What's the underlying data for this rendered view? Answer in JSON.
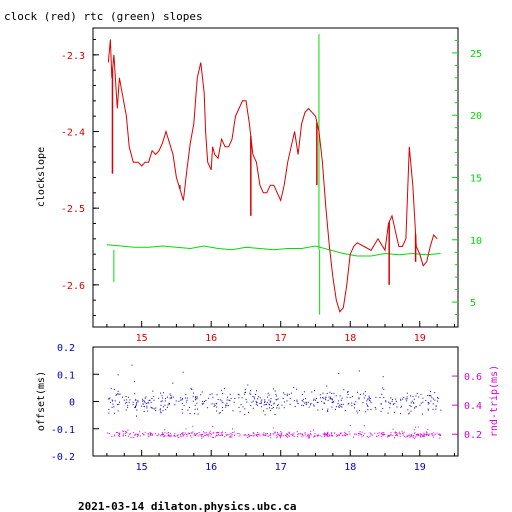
{
  "chart_data": [
    {
      "type": "line",
      "title": "clock (red) rtc (green) slopes",
      "xlabel": "",
      "ylabel": "clockslope",
      "xlim": [
        14.3,
        19.55
      ],
      "ylim": [
        -2.655,
        -2.265
      ],
      "y2lim": [
        3.0,
        27.0
      ],
      "x_ticks": [
        "15",
        "16",
        "17",
        "18",
        "19"
      ],
      "y_ticks": [
        "-2.3",
        "-2.4",
        "-2.5",
        "-2.6"
      ],
      "y2_ticks": [
        "5",
        "10",
        "15",
        "20",
        "25"
      ],
      "series": [
        {
          "name": "clock",
          "color": "#dd0000",
          "axis": "left",
          "x": [
            14.52,
            14.55,
            14.57,
            14.6,
            14.65,
            14.68,
            14.72,
            14.78,
            14.82,
            14.88,
            14.95,
            15.0,
            15.05,
            15.1,
            15.15,
            15.2,
            15.25,
            15.3,
            15.35,
            15.45,
            15.5,
            15.6,
            15.65,
            15.7,
            15.75,
            15.8,
            15.85,
            15.9,
            15.92,
            15.95,
            16.0,
            16.02,
            16.05,
            16.1,
            16.15,
            16.2,
            16.25,
            16.3,
            16.35,
            16.4,
            16.45,
            16.5,
            16.55,
            16.6,
            16.65,
            16.7,
            16.75,
            16.8,
            16.85,
            16.9,
            16.95,
            17.0,
            17.05,
            17.1,
            17.15,
            17.2,
            17.25,
            17.3,
            17.35,
            17.4,
            17.45,
            17.5,
            17.55,
            17.6,
            17.65,
            17.7,
            17.75,
            17.8,
            17.85,
            17.9,
            17.95,
            18.0,
            18.05,
            18.1,
            18.2,
            18.3,
            18.4,
            18.5,
            18.55,
            18.6,
            18.65,
            18.7,
            18.75,
            18.8,
            18.85,
            18.9,
            18.95,
            19.0,
            19.05,
            19.1,
            19.15,
            19.2,
            19.25
          ],
          "values": [
            -2.31,
            -2.28,
            -2.33,
            -2.3,
            -2.37,
            -2.33,
            -2.35,
            -2.38,
            -2.42,
            -2.44,
            -2.44,
            -2.445,
            -2.44,
            -2.44,
            -2.425,
            -2.43,
            -2.425,
            -2.415,
            -2.4,
            -2.43,
            -2.46,
            -2.49,
            -2.45,
            -2.415,
            -2.39,
            -2.33,
            -2.31,
            -2.35,
            -2.4,
            -2.44,
            -2.45,
            -2.42,
            -2.43,
            -2.435,
            -2.41,
            -2.42,
            -2.42,
            -2.41,
            -2.38,
            -2.37,
            -2.36,
            -2.36,
            -2.39,
            -2.43,
            -2.44,
            -2.47,
            -2.48,
            -2.48,
            -2.47,
            -2.47,
            -2.48,
            -2.49,
            -2.47,
            -2.44,
            -2.42,
            -2.4,
            -2.43,
            -2.39,
            -2.375,
            -2.37,
            -2.375,
            -2.38,
            -2.4,
            -2.44,
            -2.5,
            -2.55,
            -2.59,
            -2.62,
            -2.635,
            -2.63,
            -2.6,
            -2.56,
            -2.55,
            -2.545,
            -2.55,
            -2.555,
            -2.54,
            -2.555,
            -2.52,
            -2.51,
            -2.53,
            -2.55,
            -2.55,
            -2.54,
            -2.42,
            -2.47,
            -2.55,
            -2.56,
            -2.575,
            -2.57,
            -2.55,
            -2.535,
            -2.54
          ],
          "spikes": [
            {
              "x": 14.58,
              "value": -2.455
            },
            {
              "x": 15.55,
              "value": -2.47
            },
            {
              "x": 16.57,
              "value": -2.51
            },
            {
              "x": 17.52,
              "value": -2.47
            },
            {
              "x": 18.56,
              "value": -2.6
            },
            {
              "x": 18.94,
              "value": -2.57
            }
          ]
        },
        {
          "name": "rtc",
          "color": "#00dd00",
          "axis": "right",
          "x": [
            14.5,
            14.7,
            14.9,
            15.1,
            15.3,
            15.5,
            15.7,
            15.9,
            16.1,
            16.3,
            16.5,
            16.7,
            16.9,
            17.1,
            17.3,
            17.5,
            17.7,
            17.9,
            18.1,
            18.3,
            18.5,
            18.7,
            18.9,
            19.1,
            19.3
          ],
          "values": [
            9.6,
            9.5,
            9.4,
            9.4,
            9.5,
            9.4,
            9.3,
            9.5,
            9.3,
            9.2,
            9.4,
            9.3,
            9.2,
            9.3,
            9.3,
            9.5,
            9.2,
            8.9,
            8.7,
            8.7,
            8.9,
            8.8,
            8.9,
            8.8,
            8.9
          ],
          "spikes": [
            {
              "x": 14.6,
              "value": 6.6
            },
            {
              "x": 17.55,
              "value": 26.5
            },
            {
              "x": 17.56,
              "value": 4.0
            }
          ]
        }
      ]
    },
    {
      "type": "scatter",
      "xlabel": "",
      "ylabel": "offset(ms)",
      "y2label": "rnd-trip(ms)",
      "xlim": [
        14.3,
        19.55
      ],
      "ylim": [
        -0.2,
        0.2
      ],
      "y2lim": [
        0.05,
        0.8
      ],
      "x_ticks": [
        "15",
        "16",
        "17",
        "18",
        "19"
      ],
      "y_ticks": [
        "0.2",
        "0.1",
        "0",
        "-0.1",
        "-0.2"
      ],
      "y2_ticks": [
        "0.6",
        "0.4",
        "0.2"
      ],
      "series": [
        {
          "name": "offset",
          "color": "#0000cc",
          "axis": "left",
          "center": 0.0,
          "spread": 0.025,
          "x_range": [
            14.5,
            19.3
          ]
        },
        {
          "name": "rnd-trip",
          "color": "#dd00dd",
          "axis": "right",
          "center": 0.2,
          "spread": 0.012,
          "x_range": [
            14.5,
            19.3
          ]
        }
      ]
    }
  ],
  "footer": "2021-03-14  dilaton.physics.ubc.ca",
  "colors": {
    "red": "#dd0000",
    "green": "#00dd00",
    "blue": "#0000cc",
    "magenta": "#dd00dd"
  }
}
